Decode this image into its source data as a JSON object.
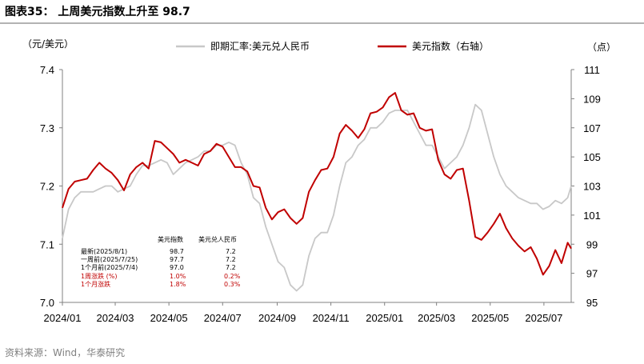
{
  "title": "图表35：  上周美元指数上升至 98.7",
  "source": "资料来源：Wind，华泰研究",
  "chart_data": {
    "type": "line",
    "left_unit": "（元/美元）",
    "right_unit": "（点）",
    "legend": [
      {
        "name": "即期汇率:美元兑人民币",
        "color": "#c8c8c8"
      },
      {
        "name": "美元指数（右轴）",
        "color": "#c00000"
      }
    ],
    "legend_placement": "top",
    "grid": false,
    "x_ticks": [
      "2024/01",
      "2024/03",
      "2024/05",
      "2024/07",
      "2024/09",
      "2024/11",
      "2025/01",
      "2025/03",
      "2025/05",
      "2025/07"
    ],
    "x_range": [
      "2024-01-01",
      "2025-08-01"
    ],
    "y_left_ticks": [
      "7.0",
      "7.1",
      "7.2",
      "7.3",
      "7.4"
    ],
    "y_left_range": [
      7.0,
      7.4
    ],
    "y_right_ticks": [
      "95",
      "97",
      "99",
      "101",
      "103",
      "105",
      "107",
      "109",
      "111"
    ],
    "y_right_range": [
      95,
      111
    ],
    "series": [
      {
        "name": "即期汇率:美元兑人民币",
        "axis": "left",
        "color": "#c8c8c8",
        "x": [
          "2024-01-01",
          "2024-01-08",
          "2024-01-15",
          "2024-01-22",
          "2024-01-29",
          "2024-02-05",
          "2024-02-12",
          "2024-02-19",
          "2024-02-26",
          "2024-03-04",
          "2024-03-11",
          "2024-03-18",
          "2024-03-25",
          "2024-04-01",
          "2024-04-08",
          "2024-04-15",
          "2024-04-22",
          "2024-04-29",
          "2024-05-06",
          "2024-05-13",
          "2024-05-20",
          "2024-05-27",
          "2024-06-03",
          "2024-06-10",
          "2024-06-17",
          "2024-06-24",
          "2024-07-01",
          "2024-07-08",
          "2024-07-15",
          "2024-07-22",
          "2024-07-29",
          "2024-08-05",
          "2024-08-12",
          "2024-08-19",
          "2024-08-26",
          "2024-09-02",
          "2024-09-09",
          "2024-09-16",
          "2024-09-23",
          "2024-09-30",
          "2024-10-07",
          "2024-10-14",
          "2024-10-21",
          "2024-10-28",
          "2024-11-04",
          "2024-11-11",
          "2024-11-18",
          "2024-11-25",
          "2024-12-02",
          "2024-12-09",
          "2024-12-16",
          "2024-12-23",
          "2024-12-30",
          "2025-01-06",
          "2025-01-13",
          "2025-01-20",
          "2025-01-27",
          "2025-02-03",
          "2025-02-10",
          "2025-02-17",
          "2025-02-24",
          "2025-03-03",
          "2025-03-10",
          "2025-03-17",
          "2025-03-24",
          "2025-03-31",
          "2025-04-07",
          "2025-04-14",
          "2025-04-21",
          "2025-04-28",
          "2025-05-05",
          "2025-05-12",
          "2025-05-19",
          "2025-05-26",
          "2025-06-02",
          "2025-06-09",
          "2025-06-16",
          "2025-06-23",
          "2025-06-30",
          "2025-07-07",
          "2025-07-14",
          "2025-07-21",
          "2025-07-28",
          "2025-08-01"
        ],
        "y": [
          7.11,
          7.16,
          7.18,
          7.19,
          7.19,
          7.19,
          7.195,
          7.2,
          7.2,
          7.19,
          7.195,
          7.2,
          7.22,
          7.235,
          7.235,
          7.24,
          7.245,
          7.24,
          7.22,
          7.23,
          7.24,
          7.245,
          7.25,
          7.26,
          7.26,
          7.27,
          7.27,
          7.275,
          7.27,
          7.24,
          7.22,
          7.18,
          7.17,
          7.13,
          7.1,
          7.07,
          7.06,
          7.03,
          7.02,
          7.03,
          7.08,
          7.11,
          7.12,
          7.12,
          7.15,
          7.2,
          7.24,
          7.25,
          7.27,
          7.28,
          7.3,
          7.3,
          7.31,
          7.325,
          7.33,
          7.33,
          7.33,
          7.31,
          7.29,
          7.27,
          7.27,
          7.25,
          7.23,
          7.24,
          7.25,
          7.27,
          7.3,
          7.34,
          7.33,
          7.29,
          7.25,
          7.22,
          7.2,
          7.19,
          7.18,
          7.175,
          7.17,
          7.17,
          7.16,
          7.165,
          7.175,
          7.17,
          7.18,
          7.2
        ]
      },
      {
        "name": "美元指数（右轴）",
        "axis": "right",
        "color": "#c00000",
        "x": [
          "2024-01-01",
          "2024-01-08",
          "2024-01-15",
          "2024-01-22",
          "2024-01-29",
          "2024-02-05",
          "2024-02-12",
          "2024-02-19",
          "2024-02-26",
          "2024-03-04",
          "2024-03-11",
          "2024-03-18",
          "2024-03-25",
          "2024-04-01",
          "2024-04-08",
          "2024-04-15",
          "2024-04-22",
          "2024-04-29",
          "2024-05-06",
          "2024-05-13",
          "2024-05-20",
          "2024-05-27",
          "2024-06-03",
          "2024-06-10",
          "2024-06-17",
          "2024-06-24",
          "2024-07-01",
          "2024-07-08",
          "2024-07-15",
          "2024-07-22",
          "2024-07-29",
          "2024-08-05",
          "2024-08-12",
          "2024-08-19",
          "2024-08-26",
          "2024-09-02",
          "2024-09-09",
          "2024-09-16",
          "2024-09-23",
          "2024-09-30",
          "2024-10-07",
          "2024-10-14",
          "2024-10-21",
          "2024-10-28",
          "2024-11-04",
          "2024-11-11",
          "2024-11-18",
          "2024-11-25",
          "2024-12-02",
          "2024-12-09",
          "2024-12-16",
          "2024-12-23",
          "2024-12-30",
          "2025-01-06",
          "2025-01-13",
          "2025-01-20",
          "2025-01-27",
          "2025-02-03",
          "2025-02-10",
          "2025-02-17",
          "2025-02-24",
          "2025-03-03",
          "2025-03-10",
          "2025-03-17",
          "2025-03-24",
          "2025-03-31",
          "2025-04-07",
          "2025-04-14",
          "2025-04-21",
          "2025-04-28",
          "2025-05-05",
          "2025-05-12",
          "2025-05-19",
          "2025-05-26",
          "2025-06-02",
          "2025-06-09",
          "2025-06-16",
          "2025-06-23",
          "2025-06-30",
          "2025-07-07",
          "2025-07-14",
          "2025-07-21",
          "2025-07-28",
          "2025-08-01"
        ],
        "y": [
          101.5,
          102.8,
          103.3,
          103.4,
          103.5,
          104.1,
          104.6,
          104.2,
          103.9,
          103.4,
          102.7,
          103.8,
          104.3,
          104.6,
          104.2,
          106.1,
          106.0,
          105.6,
          105.2,
          104.6,
          104.8,
          104.6,
          104.4,
          105.2,
          105.4,
          105.9,
          105.7,
          105.0,
          104.3,
          104.3,
          104.0,
          103.0,
          102.9,
          101.5,
          100.7,
          101.2,
          101.4,
          100.8,
          100.4,
          100.8,
          102.6,
          103.4,
          104.1,
          104.2,
          105.0,
          106.6,
          107.2,
          106.8,
          106.3,
          106.9,
          108.0,
          108.1,
          108.4,
          109.1,
          109.4,
          108.2,
          107.9,
          108.0,
          107.0,
          106.8,
          106.9,
          104.8,
          103.8,
          103.5,
          104.1,
          104.2,
          102.0,
          99.5,
          99.3,
          99.8,
          100.4,
          101.1,
          100.1,
          99.4,
          98.9,
          98.5,
          98.8,
          98.0,
          96.9,
          97.5,
          98.6,
          97.7,
          99.1,
          98.7
        ]
      }
    ],
    "table": {
      "headers": [
        "",
        "美元指数",
        "美元兑人民币"
      ],
      "rows": [
        [
          "最新(2025/8/1)",
          "98.7",
          "7.2"
        ],
        [
          "一周前(2025/7/25)",
          "97.7",
          "7.2"
        ],
        [
          "1个月前(2025/7/4)",
          "97.0",
          "7.2"
        ]
      ],
      "change_rows": [
        [
          "1周涨跌 (%)",
          "1.0%",
          "0.2%"
        ],
        [
          "1个月涨跌",
          "1.8%",
          "0.3%"
        ]
      ]
    }
  }
}
